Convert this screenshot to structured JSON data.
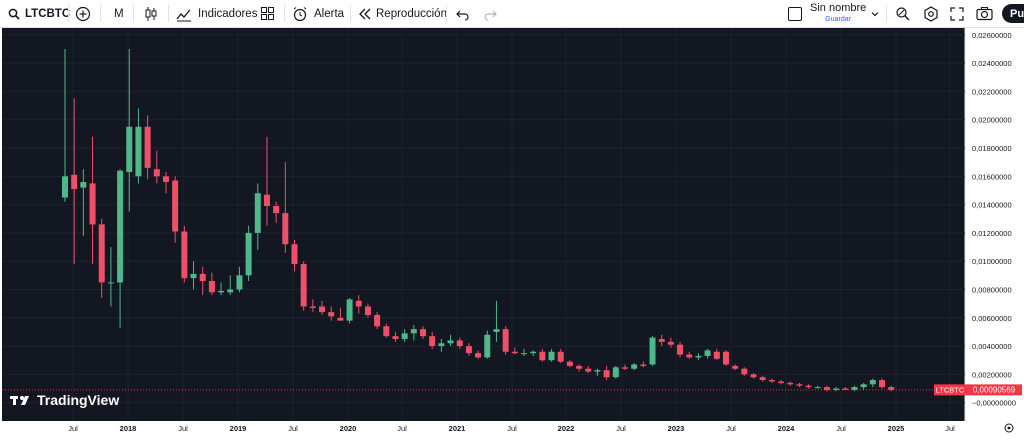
{
  "toolbar": {
    "symbol": "LTCBTC",
    "interval": "M",
    "indicators_label": "Indicadores",
    "alert_label": "Alerta",
    "replay_label": "Reproducción",
    "layout_name": "Sin nombre",
    "save_label": "Guardar",
    "publish_label": "Pu"
  },
  "colors": {
    "up": "#26a69a",
    "up_body": "#4fb88a",
    "down": "#f23645",
    "down_body": "#ef5068",
    "background": "#131722",
    "text": "#b2b5be"
  },
  "watermark": "TradingView",
  "chart_data": {
    "type": "candlestick",
    "interval": "monthly",
    "price_label": "LTCBTC",
    "last_price": "0,00090569",
    "y_ticks": [
      "0,02600000",
      "0,02400000",
      "0,02200000",
      "0,02000000",
      "0,01800000",
      "0,01600000",
      "0,01400000",
      "0,01200000",
      "0,01000000",
      "0,00800000",
      "0,00600000",
      "0,00400000",
      "0,00200000",
      "−0,00000000"
    ],
    "ylim": [
      -0.0008,
      0.0262
    ],
    "x_ticks": [
      "Jul",
      "2018",
      "Jul",
      "2019",
      "Jul",
      "2020",
      "Jul",
      "2021",
      "Jul",
      "2022",
      "Jul",
      "2023",
      "Jul",
      "2024",
      "Jul",
      "2025",
      "Jul"
    ],
    "candles": [
      {
        "o": 0.0145,
        "h": 0.025,
        "l": 0.0142,
        "c": 0.016
      },
      {
        "o": 0.0161,
        "h": 0.0215,
        "l": 0.0098,
        "c": 0.0151
      },
      {
        "o": 0.0152,
        "h": 0.0165,
        "l": 0.0118,
        "c": 0.0156
      },
      {
        "o": 0.0155,
        "h": 0.0188,
        "l": 0.0098,
        "c": 0.0126
      },
      {
        "o": 0.0126,
        "h": 0.013,
        "l": 0.0074,
        "c": 0.0085
      },
      {
        "o": 0.0085,
        "h": 0.011,
        "l": 0.0068,
        "c": 0.0085
      },
      {
        "o": 0.0085,
        "h": 0.0165,
        "l": 0.0053,
        "c": 0.0164
      },
      {
        "o": 0.0163,
        "h": 0.025,
        "l": 0.0135,
        "c": 0.0195
      },
      {
        "o": 0.016,
        "h": 0.0208,
        "l": 0.0155,
        "c": 0.0195
      },
      {
        "o": 0.0195,
        "h": 0.0203,
        "l": 0.0158,
        "c": 0.0166
      },
      {
        "o": 0.0165,
        "h": 0.0178,
        "l": 0.0155,
        "c": 0.016
      },
      {
        "o": 0.016,
        "h": 0.0163,
        "l": 0.0148,
        "c": 0.0156
      },
      {
        "o": 0.0157,
        "h": 0.016,
        "l": 0.0113,
        "c": 0.0121
      },
      {
        "o": 0.0121,
        "h": 0.0125,
        "l": 0.0085,
        "c": 0.0088
      },
      {
        "o": 0.0088,
        "h": 0.01,
        "l": 0.008,
        "c": 0.0091
      },
      {
        "o": 0.0091,
        "h": 0.0096,
        "l": 0.0076,
        "c": 0.0086
      },
      {
        "o": 0.0086,
        "h": 0.0092,
        "l": 0.0076,
        "c": 0.0078
      },
      {
        "o": 0.0078,
        "h": 0.0085,
        "l": 0.0076,
        "c": 0.0079
      },
      {
        "o": 0.0078,
        "h": 0.009,
        "l": 0.0076,
        "c": 0.008
      },
      {
        "o": 0.008,
        "h": 0.0096,
        "l": 0.0078,
        "c": 0.009
      },
      {
        "o": 0.009,
        "h": 0.0125,
        "l": 0.0086,
        "c": 0.012
      },
      {
        "o": 0.012,
        "h": 0.0155,
        "l": 0.0108,
        "c": 0.0148
      },
      {
        "o": 0.0147,
        "h": 0.0188,
        "l": 0.0125,
        "c": 0.0139
      },
      {
        "o": 0.0139,
        "h": 0.0142,
        "l": 0.0127,
        "c": 0.0134
      },
      {
        "o": 0.0134,
        "h": 0.017,
        "l": 0.0106,
        "c": 0.0112
      },
      {
        "o": 0.0112,
        "h": 0.0115,
        "l": 0.0093,
        "c": 0.0098
      },
      {
        "o": 0.0098,
        "h": 0.01,
        "l": 0.0065,
        "c": 0.0068
      },
      {
        "o": 0.0068,
        "h": 0.0073,
        "l": 0.0064,
        "c": 0.0067
      },
      {
        "o": 0.0068,
        "h": 0.0072,
        "l": 0.0062,
        "c": 0.0064
      },
      {
        "o": 0.0064,
        "h": 0.0068,
        "l": 0.0058,
        "c": 0.0061
      },
      {
        "o": 0.006,
        "h": 0.0067,
        "l": 0.0058,
        "c": 0.0058
      },
      {
        "o": 0.0058,
        "h": 0.0074,
        "l": 0.0056,
        "c": 0.0073
      },
      {
        "o": 0.0072,
        "h": 0.0076,
        "l": 0.0063,
        "c": 0.0068
      },
      {
        "o": 0.0068,
        "h": 0.007,
        "l": 0.006,
        "c": 0.0062
      },
      {
        "o": 0.0062,
        "h": 0.0064,
        "l": 0.0052,
        "c": 0.0054
      },
      {
        "o": 0.0054,
        "h": 0.0056,
        "l": 0.0046,
        "c": 0.0047
      },
      {
        "o": 0.0047,
        "h": 0.005,
        "l": 0.0043,
        "c": 0.0045
      },
      {
        "o": 0.0045,
        "h": 0.0052,
        "l": 0.0043,
        "c": 0.0049
      },
      {
        "o": 0.0049,
        "h": 0.0055,
        "l": 0.0044,
        "c": 0.0052
      },
      {
        "o": 0.0052,
        "h": 0.0054,
        "l": 0.0045,
        "c": 0.0047
      },
      {
        "o": 0.0047,
        "h": 0.005,
        "l": 0.0038,
        "c": 0.004
      },
      {
        "o": 0.004,
        "h": 0.0045,
        "l": 0.0036,
        "c": 0.0042
      },
      {
        "o": 0.0042,
        "h": 0.0048,
        "l": 0.004,
        "c": 0.0044
      },
      {
        "o": 0.0044,
        "h": 0.0046,
        "l": 0.0038,
        "c": 0.004
      },
      {
        "o": 0.004,
        "h": 0.0042,
        "l": 0.0033,
        "c": 0.0035
      },
      {
        "o": 0.0035,
        "h": 0.0037,
        "l": 0.0031,
        "c": 0.0032
      },
      {
        "o": 0.0032,
        "h": 0.0051,
        "l": 0.0031,
        "c": 0.0048
      },
      {
        "o": 0.005,
        "h": 0.0072,
        "l": 0.0043,
        "c": 0.0052
      },
      {
        "o": 0.0052,
        "h": 0.0054,
        "l": 0.0034,
        "c": 0.0036
      },
      {
        "o": 0.0036,
        "h": 0.0039,
        "l": 0.0034,
        "c": 0.0035
      },
      {
        "o": 0.0035,
        "h": 0.0038,
        "l": 0.0033,
        "c": 0.0035
      },
      {
        "o": 0.0035,
        "h": 0.0037,
        "l": 0.0033,
        "c": 0.0036
      },
      {
        "o": 0.0036,
        "h": 0.0038,
        "l": 0.0029,
        "c": 0.003
      },
      {
        "o": 0.003,
        "h": 0.0038,
        "l": 0.0029,
        "c": 0.0036
      },
      {
        "o": 0.0036,
        "h": 0.0038,
        "l": 0.0028,
        "c": 0.0029
      },
      {
        "o": 0.0029,
        "h": 0.003,
        "l": 0.0025,
        "c": 0.0026
      },
      {
        "o": 0.0026,
        "h": 0.0027,
        "l": 0.0022,
        "c": 0.0024
      },
      {
        "o": 0.0024,
        "h": 0.0026,
        "l": 0.0021,
        "c": 0.0022
      },
      {
        "o": 0.0022,
        "h": 0.0024,
        "l": 0.0019,
        "c": 0.0023
      },
      {
        "o": 0.0023,
        "h": 0.0026,
        "l": 0.0016,
        "c": 0.0018
      },
      {
        "o": 0.0018,
        "h": 0.0026,
        "l": 0.0017,
        "c": 0.0025
      },
      {
        "o": 0.0025,
        "h": 0.0027,
        "l": 0.0023,
        "c": 0.0024
      },
      {
        "o": 0.0024,
        "h": 0.0028,
        "l": 0.0023,
        "c": 0.0027
      },
      {
        "o": 0.0027,
        "h": 0.0029,
        "l": 0.0025,
        "c": 0.0026
      },
      {
        "o": 0.0027,
        "h": 0.0047,
        "l": 0.0026,
        "c": 0.0046
      },
      {
        "o": 0.0045,
        "h": 0.0048,
        "l": 0.004,
        "c": 0.0043
      },
      {
        "o": 0.0043,
        "h": 0.0046,
        "l": 0.0039,
        "c": 0.0041
      },
      {
        "o": 0.0041,
        "h": 0.0043,
        "l": 0.0032,
        "c": 0.0034
      },
      {
        "o": 0.0034,
        "h": 0.0036,
        "l": 0.0031,
        "c": 0.0032
      },
      {
        "o": 0.0032,
        "h": 0.0035,
        "l": 0.003,
        "c": 0.0033
      },
      {
        "o": 0.0033,
        "h": 0.0038,
        "l": 0.0031,
        "c": 0.0037
      },
      {
        "o": 0.0036,
        "h": 0.0038,
        "l": 0.003,
        "c": 0.0031
      },
      {
        "o": 0.0036,
        "h": 0.0037,
        "l": 0.0026,
        "c": 0.0027
      },
      {
        "o": 0.0026,
        "h": 0.0027,
        "l": 0.0023,
        "c": 0.0024
      },
      {
        "o": 0.0024,
        "h": 0.0025,
        "l": 0.0019,
        "c": 0.002
      },
      {
        "o": 0.002,
        "h": 0.0021,
        "l": 0.0017,
        "c": 0.0018
      },
      {
        "o": 0.0018,
        "h": 0.0019,
        "l": 0.0015,
        "c": 0.0016
      },
      {
        "o": 0.0016,
        "h": 0.0017,
        "l": 0.0014,
        "c": 0.0015
      },
      {
        "o": 0.0015,
        "h": 0.0016,
        "l": 0.0013,
        "c": 0.0014
      },
      {
        "o": 0.0014,
        "h": 0.0015,
        "l": 0.0012,
        "c": 0.0013
      },
      {
        "o": 0.0013,
        "h": 0.0014,
        "l": 0.0011,
        "c": 0.0012
      },
      {
        "o": 0.0012,
        "h": 0.0013,
        "l": 0.001,
        "c": 0.0011
      },
      {
        "o": 0.0011,
        "h": 0.0012,
        "l": 0.001,
        "c": 0.0011
      },
      {
        "o": 0.0011,
        "h": 0.0012,
        "l": 0.0008,
        "c": 0.0009
      },
      {
        "o": 0.0009,
        "h": 0.0011,
        "l": 0.0008,
        "c": 0.001
      },
      {
        "o": 0.001,
        "h": 0.0011,
        "l": 0.0009,
        "c": 0.0009
      },
      {
        "o": 0.0009,
        "h": 0.0012,
        "l": 0.0008,
        "c": 0.0011
      },
      {
        "o": 0.0011,
        "h": 0.0014,
        "l": 0.0009,
        "c": 0.0013
      },
      {
        "o": 0.0013,
        "h": 0.0017,
        "l": 0.0011,
        "c": 0.0016
      },
      {
        "o": 0.0016,
        "h": 0.0017,
        "l": 0.001,
        "c": 0.0011
      },
      {
        "o": 0.0011,
        "h": 0.0012,
        "l": 0.0008,
        "c": 0.0009
      }
    ]
  }
}
